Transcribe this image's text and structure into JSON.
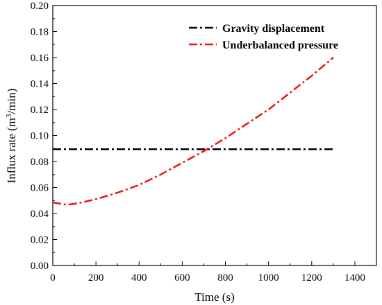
{
  "chart_data": {
    "type": "line",
    "xlabel": "Time (s)",
    "ylabel": "Influx rate (m³/min)",
    "ylabel_parts": {
      "before": "Influx rate (m",
      "sup": "3",
      "after": "/min)"
    },
    "xlim": [
      0,
      1500
    ],
    "ylim": [
      0,
      0.2
    ],
    "x_ticks": [
      0,
      200,
      400,
      600,
      800,
      1000,
      1200,
      1400
    ],
    "y_ticks": [
      "0.00",
      "0.02",
      "0.04",
      "0.06",
      "0.08",
      "0.10",
      "0.12",
      "0.14",
      "0.16",
      "0.18",
      "0.20"
    ],
    "grid": false,
    "legend_position": "top-right",
    "series": [
      {
        "name": "Gravity displacement",
        "color": "#000000",
        "dash": "dash-dot",
        "x": [
          0,
          1310
        ],
        "y": [
          0.0895,
          0.0895
        ]
      },
      {
        "name": "Underbalanced pressure",
        "color": "#ee1111",
        "dash": "dash-dot",
        "x": [
          0,
          20,
          50,
          80,
          120,
          200,
          300,
          400,
          500,
          600,
          700,
          800,
          900,
          1000,
          1100,
          1200,
          1300
        ],
        "y": [
          0.0485,
          0.048,
          0.047,
          0.047,
          0.048,
          0.051,
          0.056,
          0.062,
          0.07,
          0.079,
          0.088,
          0.098,
          0.109,
          0.12,
          0.133,
          0.146,
          0.16
        ]
      }
    ]
  }
}
